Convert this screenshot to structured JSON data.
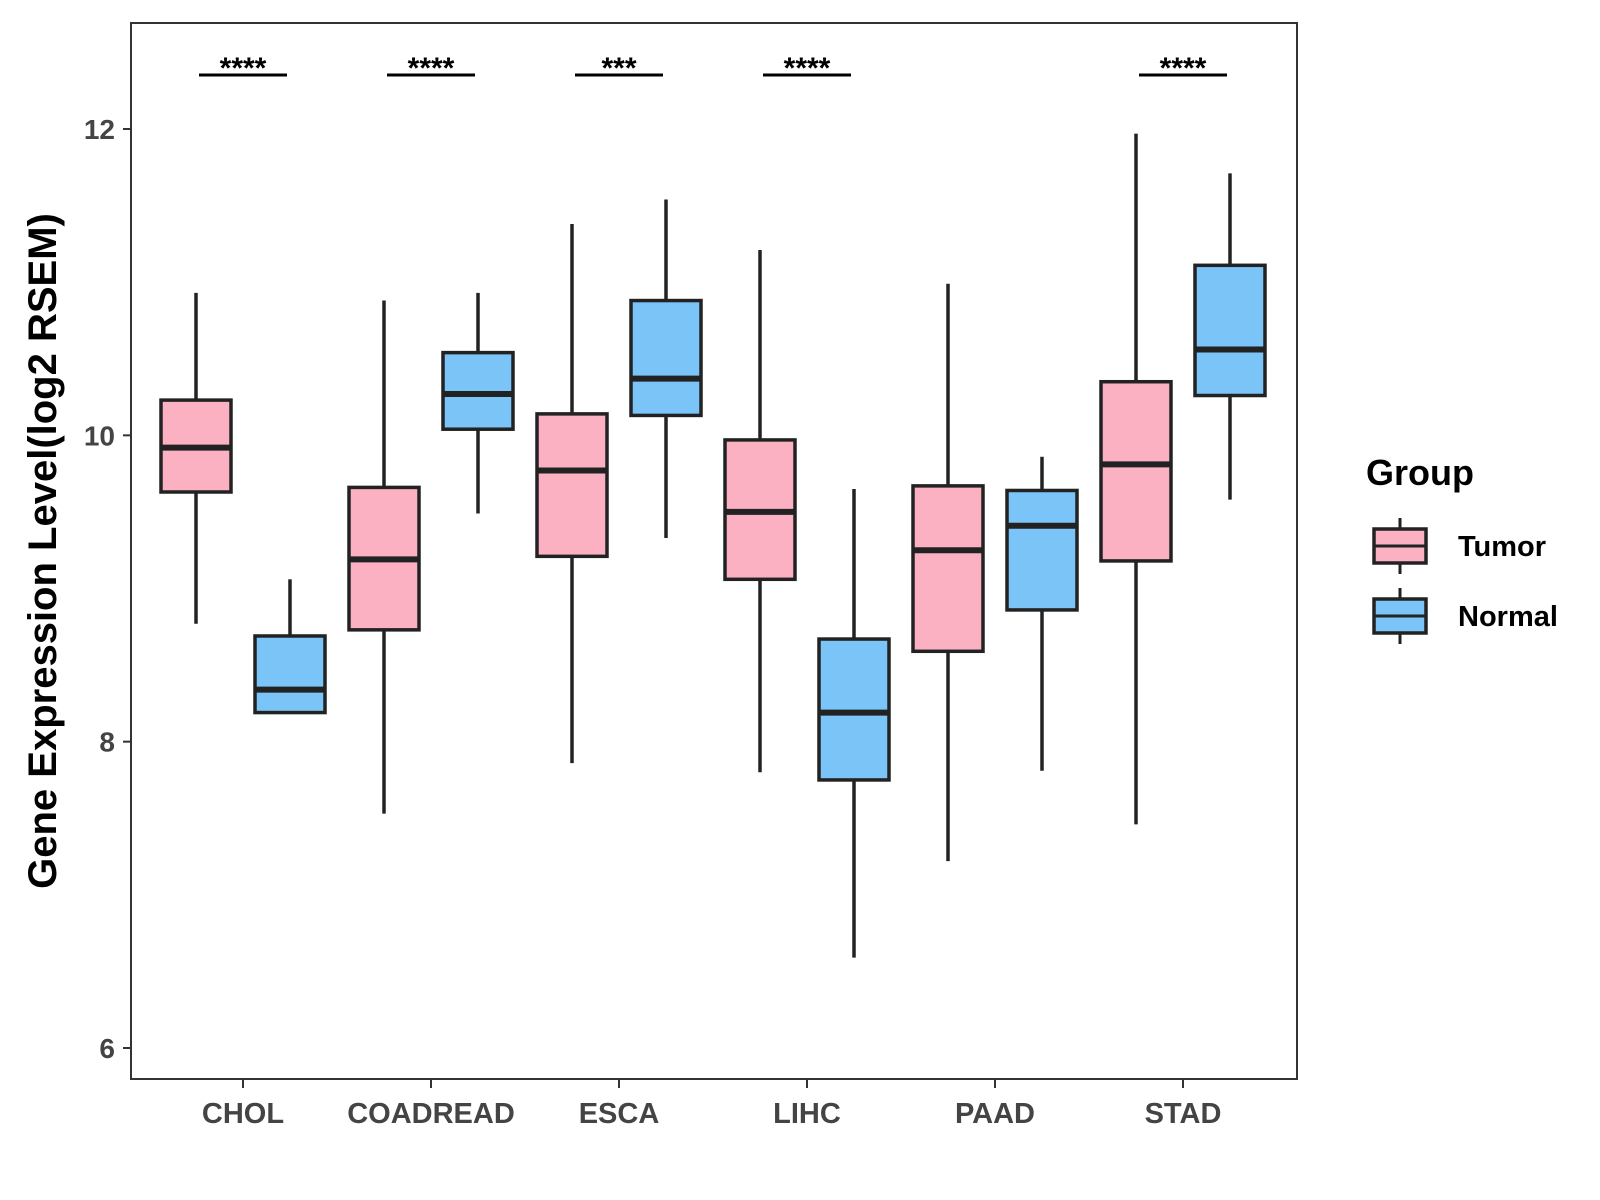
{
  "chart_data": {
    "type": "boxplot",
    "title": "",
    "xlabel": "",
    "ylabel": "Gene Expression Level(log2 RSEM)",
    "ylim": [
      5.8,
      12.7
    ],
    "yticks": [
      6,
      8,
      10,
      12
    ],
    "grid": false,
    "legend_position": "right",
    "legend_title": "Group",
    "categories": [
      "CHOL",
      "COADREAD",
      "ESCA",
      "LIHC",
      "PAAD",
      "STAD"
    ],
    "series": [
      {
        "name": "Tumor",
        "color": "#FBB1C1",
        "boxes": [
          {
            "min": 8.77,
            "q1": 9.63,
            "median": 9.92,
            "q3": 10.23,
            "max": 10.93
          },
          {
            "min": 7.53,
            "q1": 8.73,
            "median": 9.19,
            "q3": 9.66,
            "max": 10.88
          },
          {
            "min": 7.86,
            "q1": 9.21,
            "median": 9.77,
            "q3": 10.14,
            "max": 11.38
          },
          {
            "min": 7.8,
            "q1": 9.06,
            "median": 9.5,
            "q3": 9.97,
            "max": 11.21
          },
          {
            "min": 7.22,
            "q1": 8.59,
            "median": 9.25,
            "q3": 9.67,
            "max": 10.99
          },
          {
            "min": 7.46,
            "q1": 9.18,
            "median": 9.81,
            "q3": 10.35,
            "max": 11.97
          }
        ]
      },
      {
        "name": "Normal",
        "color": "#7AC4F8",
        "boxes": [
          {
            "min": 8.19,
            "q1": 8.19,
            "median": 8.34,
            "q3": 8.69,
            "max": 9.06
          },
          {
            "min": 9.49,
            "q1": 10.04,
            "median": 10.27,
            "q3": 10.54,
            "max": 10.93
          },
          {
            "min": 9.33,
            "q1": 10.13,
            "median": 10.37,
            "q3": 10.88,
            "max": 11.54
          },
          {
            "min": 6.59,
            "q1": 7.75,
            "median": 8.19,
            "q3": 8.67,
            "max": 9.65
          },
          {
            "min": 7.81,
            "q1": 8.86,
            "median": 9.41,
            "q3": 9.64,
            "max": 9.86
          },
          {
            "min": 9.58,
            "q1": 10.26,
            "median": 10.56,
            "q3": 11.11,
            "max": 11.71
          }
        ]
      }
    ],
    "significance": [
      {
        "category": "CHOL",
        "label": "****"
      },
      {
        "category": "COADREAD",
        "label": "****"
      },
      {
        "category": "ESCA",
        "label": "***"
      },
      {
        "category": "LIHC",
        "label": "****"
      },
      {
        "category": "PAAD",
        "label": ""
      },
      {
        "category": "STAD",
        "label": "****"
      }
    ],
    "styles": {
      "box_stroke": "#222222",
      "axis_color": "#333333",
      "background": "#FFFFFF"
    }
  }
}
